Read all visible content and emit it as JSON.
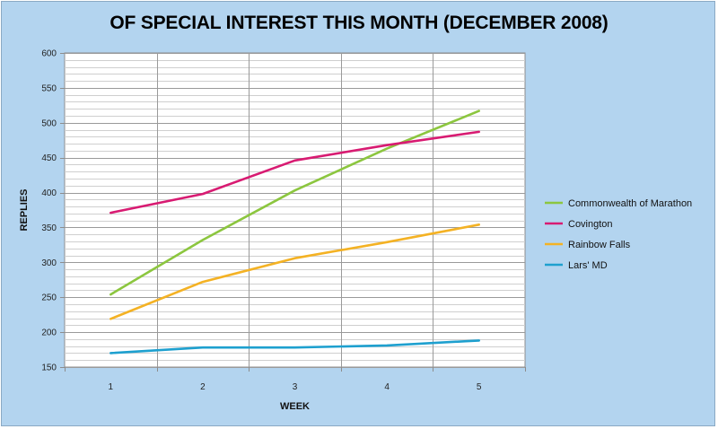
{
  "chart_data": {
    "type": "line",
    "title": "OF SPECIAL INTEREST THIS MONTH (DECEMBER 2008)",
    "xlabel": "WEEK",
    "ylabel": "REPLIES",
    "categories": [
      "1",
      "2",
      "3",
      "4",
      "5"
    ],
    "ylim": [
      150,
      600
    ],
    "y_ticks": [
      150,
      200,
      250,
      300,
      350,
      400,
      450,
      500,
      550,
      600
    ],
    "grid": true,
    "legend_position": "right",
    "series": [
      {
        "name": "Commonwealth of Marathon",
        "color": "#8cc63f",
        "values": [
          254,
          332,
          403,
          463,
          517
        ]
      },
      {
        "name": "Covington",
        "color": "#d81b72",
        "values": [
          371,
          398,
          446,
          468,
          487
        ]
      },
      {
        "name": "Rainbow Falls",
        "color": "#f4b224",
        "values": [
          219,
          272,
          306,
          329,
          354
        ]
      },
      {
        "name": "Lars' MD",
        "color": "#1ea0cf",
        "values": [
          170,
          178,
          178,
          181,
          188
        ]
      }
    ]
  }
}
